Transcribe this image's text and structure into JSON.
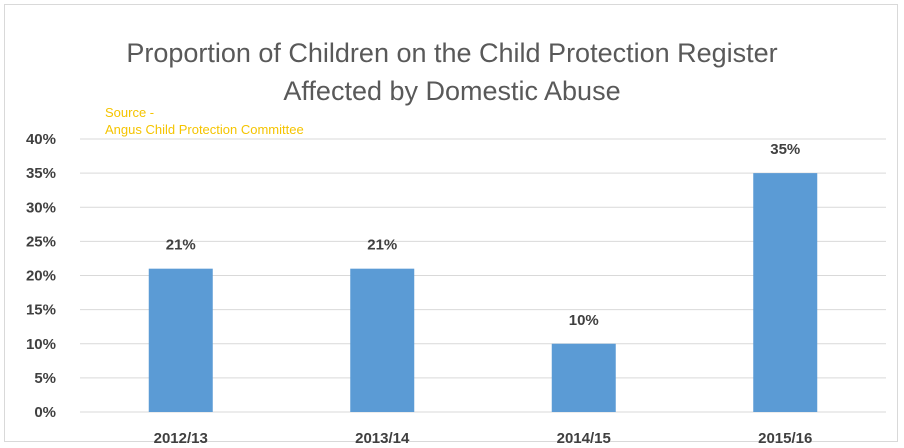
{
  "chart_data": {
    "type": "bar",
    "title_lines": [
      "Proportion of Children on the Child Protection Register",
      "Affected by Domestic Abuse"
    ],
    "source_lines": [
      "Source -",
      "Angus Child Protection Committee"
    ],
    "categories": [
      "2012/13",
      "2013/14",
      "2014/15",
      "2015/16"
    ],
    "values": [
      21,
      21,
      10,
      35
    ],
    "data_labels": [
      "21%",
      "21%",
      "10%",
      "35%"
    ],
    "y_ticks": [
      "0%",
      "5%",
      "10%",
      "15%",
      "20%",
      "25%",
      "30%",
      "35%",
      "40%"
    ],
    "ylim": [
      0,
      40
    ],
    "grid": true,
    "bar_color": "#5b9bd5",
    "grid_color": "#d9d9d9",
    "text_color": "#404040",
    "source_color": "#f5c400"
  }
}
